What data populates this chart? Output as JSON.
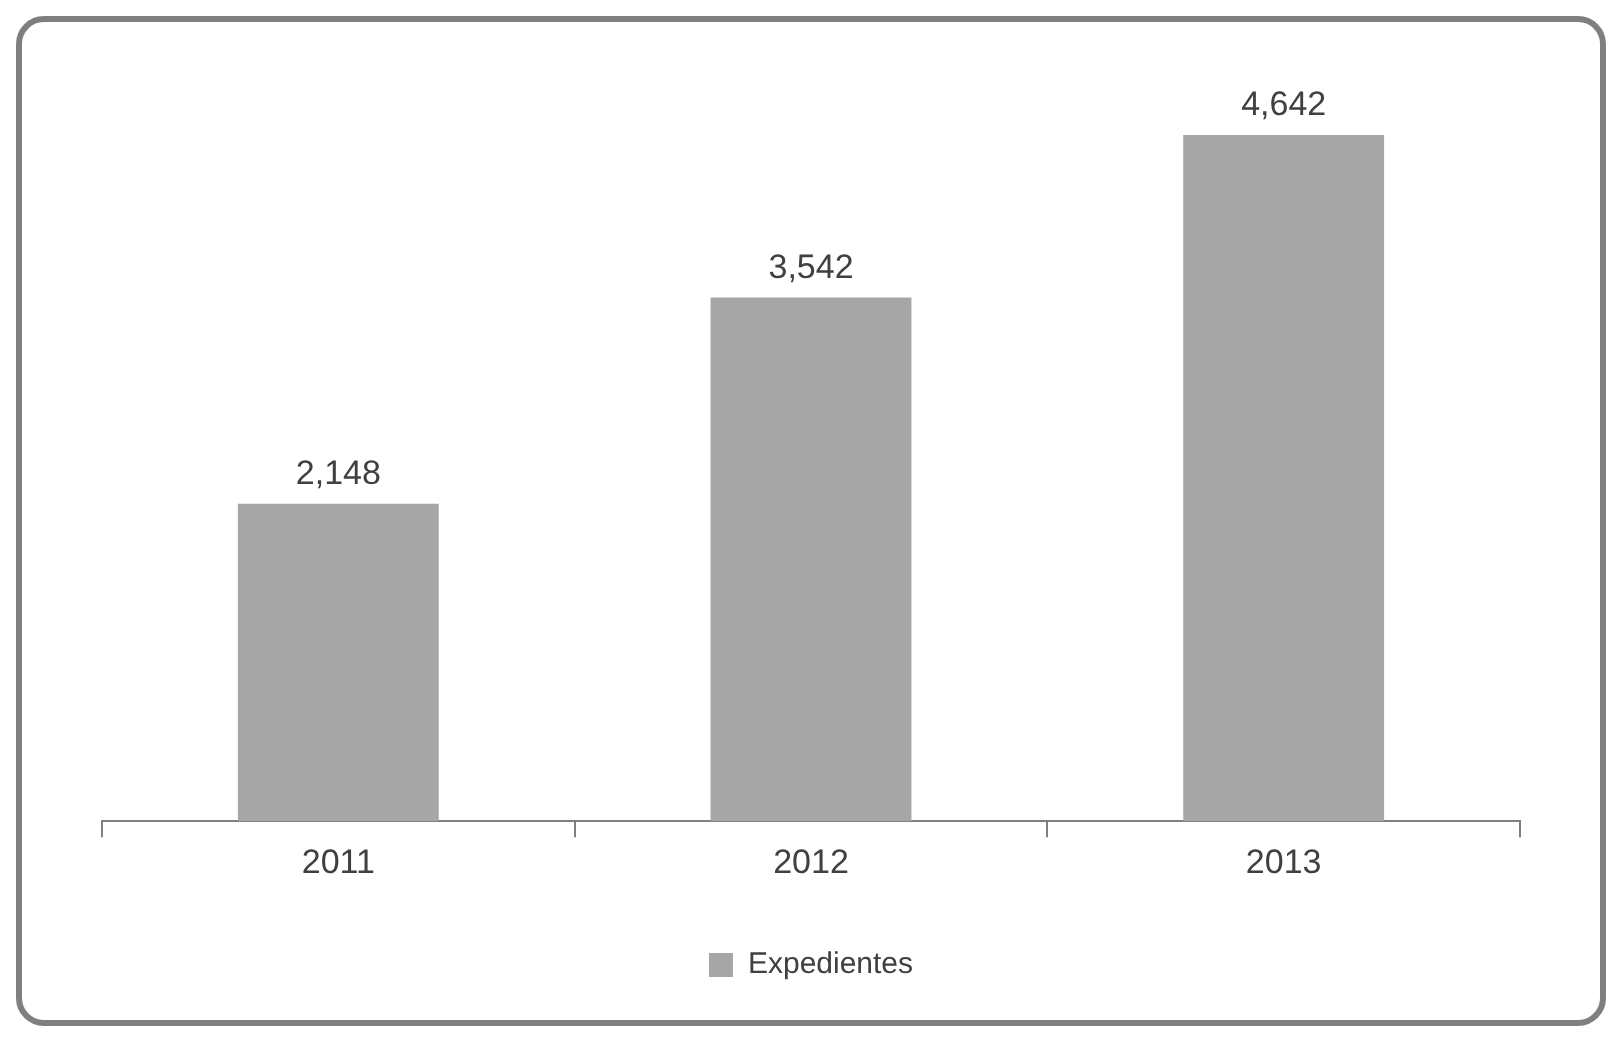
{
  "chart_data": {
    "type": "bar",
    "categories": [
      "2011",
      "2012",
      "2013"
    ],
    "series": [
      {
        "name": "Expedientes",
        "color": "#a6a6a6",
        "values": [
          2148,
          3542,
          4642
        ],
        "value_labels": [
          "2,148",
          "3,542",
          "4,642"
        ]
      }
    ],
    "grid": false,
    "legend": "bottom"
  }
}
